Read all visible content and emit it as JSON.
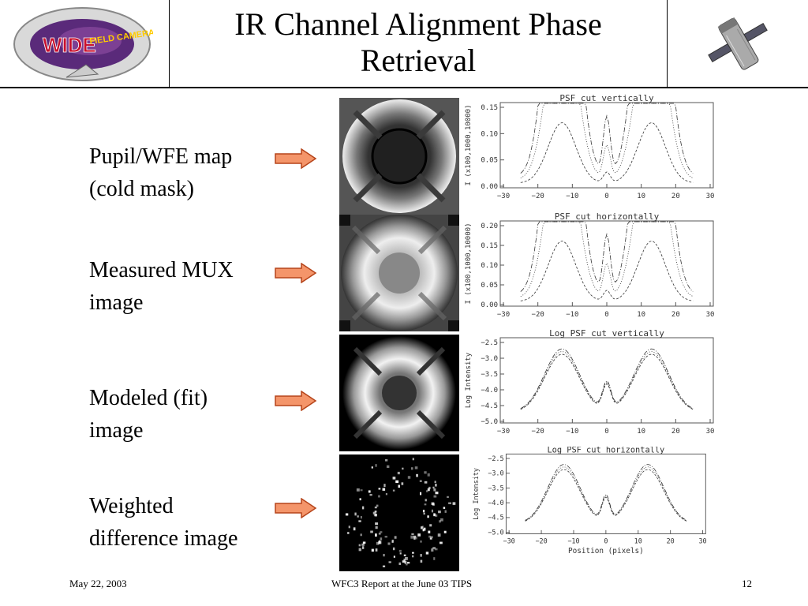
{
  "header": {
    "title_line1": "IR Channel Alignment Phase",
    "title_line2": "Retrieval",
    "logo_alt": "WIDE FIELD CAMERA 3"
  },
  "rows": [
    {
      "label": "Pupil/WFE map\n(cold mask)"
    },
    {
      "label": "Measured MUX\nimage"
    },
    {
      "label": "Modeled (fit)\nimage"
    },
    {
      "label": "Weighted\ndifference image"
    }
  ],
  "plots": [
    {
      "title": "PSF cut vertically",
      "ylabel": "I (x100,1000,10000)",
      "yticks": [
        "0.00",
        "0.05",
        "0.10",
        "0.15"
      ],
      "xticks": [
        "−30",
        "−20",
        "−10",
        "0",
        "10",
        "20",
        "30"
      ]
    },
    {
      "title": "PSF cut horizontally",
      "ylabel": "I (x100,1000,10000)",
      "yticks": [
        "0.00",
        "0.05",
        "0.10",
        "0.15",
        "0.20"
      ],
      "xticks": [
        "−30",
        "−20",
        "−10",
        "0",
        "10",
        "20",
        "30"
      ]
    },
    {
      "title": "Log PSF cut vertically",
      "ylabel": "Log Intensity",
      "yticks": [
        "−5.0",
        "−4.5",
        "−4.0",
        "−3.5",
        "−3.0",
        "−2.5"
      ],
      "xticks": [
        "−30",
        "−20",
        "−10",
        "0",
        "10",
        "20",
        "30"
      ]
    },
    {
      "title": "Log PSF cut horizontally",
      "ylabel": "Log Intensity",
      "yticks": [
        "−5.0",
        "−4.5",
        "−4.0",
        "−3.5",
        "−3.0",
        "−2.5"
      ],
      "xticks": [
        "−30",
        "−20",
        "−10",
        "0",
        "10",
        "20",
        "30"
      ],
      "xlabel": "Position (pixels)"
    }
  ],
  "footer": {
    "date": "May 22, 2003",
    "center": "WFC3 Report at the June 03 TIPS",
    "page": "12"
  },
  "colors": {
    "arrow_fill": "#f4956a",
    "arrow_stroke": "#b5441a",
    "logo_red": "#c8102e",
    "logo_purple": "#5a2a7a"
  }
}
